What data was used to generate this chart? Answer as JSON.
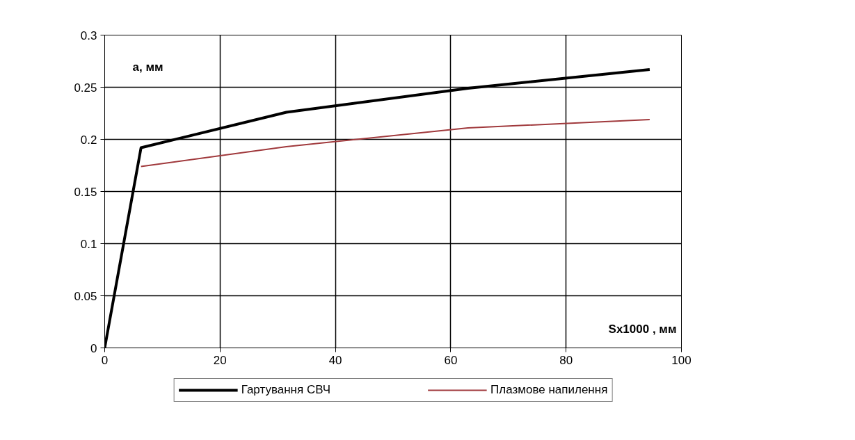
{
  "chart_data": {
    "type": "line",
    "xlabel": "Sx1000 , мм",
    "ylabel": "a, мм",
    "x": [
      0,
      6.3,
      31.5,
      63,
      94.5
    ],
    "series": [
      {
        "name": "Гартування СВЧ",
        "color": "#000000",
        "values": [
          0,
          0.192,
          0.226,
          0.249,
          0.267
        ]
      },
      {
        "name": "Плазмове напилення",
        "color": "#a0393c",
        "values": [
          null,
          0.174,
          0.193,
          0.211,
          0.219
        ]
      }
    ],
    "xlim": [
      0,
      100
    ],
    "xticks": [
      0,
      20,
      40,
      60,
      80,
      100
    ],
    "ylim": [
      0,
      0.3
    ],
    "yticks": [
      0,
      0.05,
      0.1,
      0.15,
      0.2,
      0.25,
      0.3
    ],
    "grid": true,
    "legend": "bottom",
    "marker": "none",
    "line_style": "solid"
  }
}
